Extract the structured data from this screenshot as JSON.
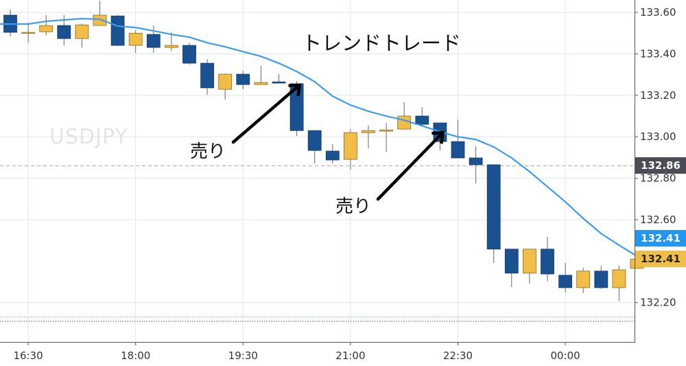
{
  "chart_data": {
    "type": "candlestick",
    "title": "トレンドトレード",
    "watermark": "USDJPY",
    "xlabel": "",
    "ylabel": "",
    "ylim": [
      132.01,
      133.66
    ],
    "grid": true,
    "x_tick_labels": [
      {
        "index": 1,
        "label": "16:30"
      },
      {
        "index": 7,
        "label": "18:00"
      },
      {
        "index": 13,
        "label": "19:30"
      },
      {
        "index": 19,
        "label": "21:00"
      },
      {
        "index": 25,
        "label": "22:30"
      },
      {
        "index": 31,
        "label": "00:00"
      }
    ],
    "y_ticks": [
      133.6,
      133.4,
      133.2,
      133.0,
      132.8,
      132.6,
      132.2
    ],
    "y_tick_labels": [
      "133.60",
      "133.40",
      "133.20",
      "133.00",
      "132.80",
      "132.60",
      "132.20"
    ],
    "colors": {
      "bearish": "#1a5190",
      "bullish": "#f0bd47",
      "ma": "#3d9bf0",
      "grid": "#dde7f3",
      "wick": "#666666"
    },
    "ohlc": [
      [
        133.587,
        133.613,
        133.484,
        133.504
      ],
      [
        133.504,
        133.55,
        133.454,
        133.504
      ],
      [
        133.507,
        133.587,
        133.49,
        133.537
      ],
      [
        133.537,
        133.587,
        133.44,
        133.474
      ],
      [
        133.474,
        133.547,
        133.431,
        133.54
      ],
      [
        133.537,
        133.656,
        133.537,
        133.587
      ],
      [
        133.583,
        133.587,
        133.438,
        133.441
      ],
      [
        133.441,
        133.514,
        133.405,
        133.5
      ],
      [
        133.494,
        133.537,
        133.405,
        133.431
      ],
      [
        133.431,
        133.504,
        133.414,
        133.441
      ],
      [
        133.441,
        133.454,
        133.348,
        133.355
      ],
      [
        133.355,
        133.375,
        133.203,
        133.236
      ],
      [
        133.229,
        133.305,
        133.18,
        133.302
      ],
      [
        133.302,
        133.318,
        133.229,
        133.252
      ],
      [
        133.252,
        133.342,
        133.252,
        133.262
      ],
      [
        133.265,
        133.302,
        133.259,
        133.259
      ],
      [
        133.256,
        133.269,
        133.004,
        133.03
      ],
      [
        133.03,
        133.03,
        132.871,
        132.934
      ],
      [
        132.931,
        132.964,
        132.871,
        132.888
      ],
      [
        132.891,
        133.037,
        132.842,
        133.02
      ],
      [
        133.02,
        133.054,
        132.944,
        133.03
      ],
      [
        133.027,
        133.067,
        132.928,
        133.033
      ],
      [
        133.037,
        133.166,
        133.037,
        133.1
      ],
      [
        133.1,
        133.143,
        133.05,
        133.06
      ],
      [
        133.067,
        133.067,
        132.934,
        132.977
      ],
      [
        132.977,
        133.083,
        132.898,
        132.898
      ],
      [
        132.898,
        132.954,
        132.775,
        132.865
      ],
      [
        132.865,
        132.865,
        132.391,
        132.458
      ],
      [
        132.458,
        132.458,
        132.275,
        132.342
      ],
      [
        132.342,
        132.458,
        132.292,
        132.458
      ],
      [
        132.458,
        132.517,
        132.302,
        132.338
      ],
      [
        132.332,
        132.391,
        132.249,
        132.272
      ],
      [
        132.272,
        132.368,
        132.246,
        132.352
      ],
      [
        132.352,
        132.378,
        132.266,
        132.272
      ],
      [
        132.272,
        132.378,
        132.209,
        132.358
      ],
      [
        132.365,
        132.41,
        132.365,
        132.41
      ]
    ],
    "ma": [
      133.544,
      133.544,
      133.557,
      133.564,
      133.57,
      133.567,
      133.534,
      133.527,
      133.511,
      133.494,
      133.481,
      133.454,
      133.434,
      133.411,
      133.388,
      133.355,
      133.315,
      133.266,
      133.196,
      133.153,
      133.123,
      133.1,
      133.08,
      133.053,
      133.024,
      133.0,
      132.987,
      132.951,
      132.898,
      132.832,
      132.759,
      132.686,
      132.606,
      132.533,
      132.477,
      132.424
    ],
    "horizontal_lines": [
      {
        "price": 132.86,
        "style": "dashed",
        "color": "#aaaaaa"
      },
      {
        "price": 132.13,
        "style": "dotted",
        "color": "#6fa0e0"
      },
      {
        "price": 132.11,
        "style": "dotted",
        "color": "#555555"
      }
    ],
    "price_labels": [
      {
        "text": "132.86",
        "price": 132.86,
        "bg": "#4a4d56",
        "fg": "#ffffff"
      },
      {
        "text": "132.41",
        "price": 132.51,
        "bg": "#2196f3",
        "fg": "#ffffff"
      },
      {
        "text": "132.41",
        "price": 132.41,
        "bg": "#f0bd47",
        "fg": "#222222"
      }
    ],
    "annotations": [
      {
        "text": "売り",
        "target_index": 16,
        "target_price": 133.25
      },
      {
        "text": "売り",
        "target_index": 24,
        "target_price": 133.02
      }
    ]
  }
}
